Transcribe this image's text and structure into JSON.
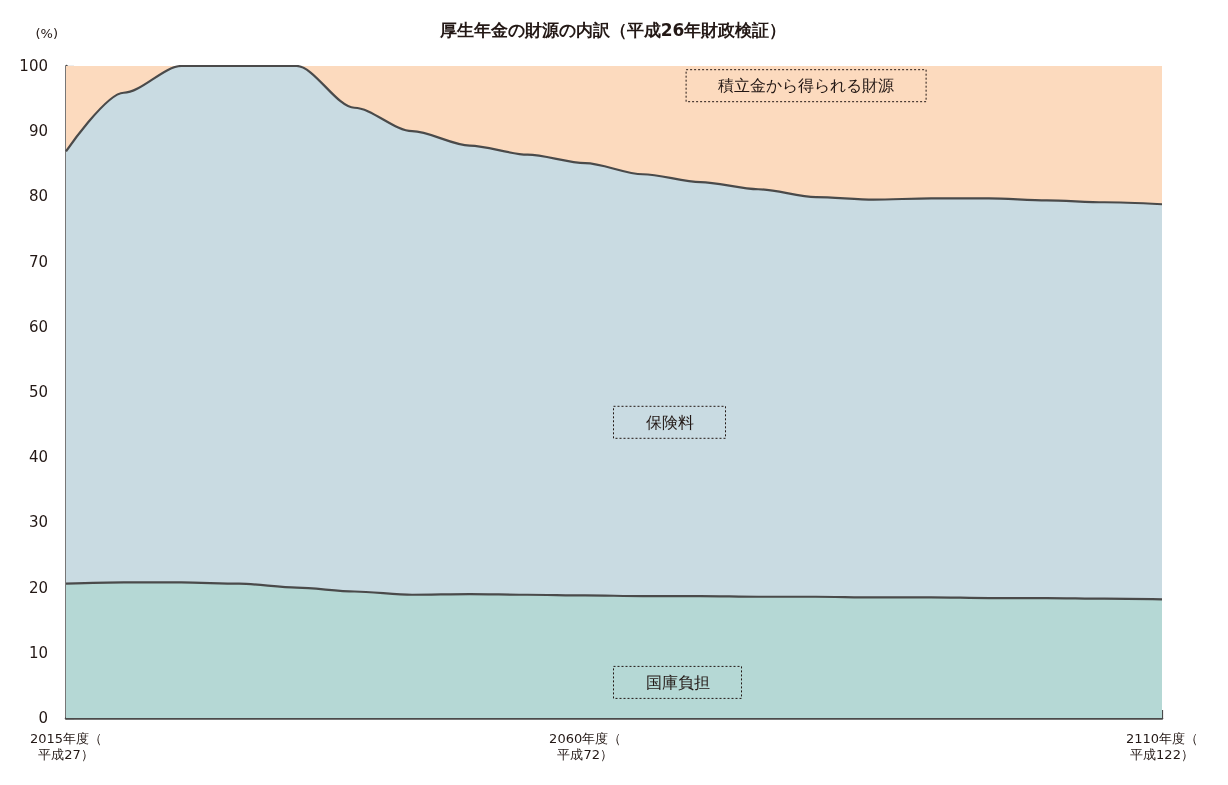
{
  "chart_data": {
    "type": "area",
    "title": "厚生年金の財源の内訳（平成26年財政検証）",
    "ylabel": "(%)",
    "stacked": true,
    "categories": [
      "2015年度（平成27）",
      null,
      null,
      null,
      null,
      null,
      null,
      null,
      null,
      "2060年度（平成72）",
      null,
      null,
      null,
      null,
      null,
      null,
      null,
      null,
      null,
      "2110年度（平成122）"
    ],
    "series": [
      {
        "name": "国庫負担",
        "color": "#b5d8d5",
        "values": [
          20.6,
          20.8,
          20.8,
          20.6,
          20.0,
          19.4,
          18.9,
          19.0,
          18.9,
          18.8,
          18.7,
          18.7,
          18.6,
          18.6,
          18.5,
          18.5,
          18.4,
          18.4,
          18.3,
          18.2
        ]
      },
      {
        "name": "保険料",
        "color": "#c9dbe2",
        "values": [
          66.3,
          75.1,
          79.2,
          79.4,
          80.0,
          74.2,
          71.1,
          68.8,
          67.5,
          66.3,
          64.7,
          63.5,
          62.5,
          61.3,
          61.0,
          61.2,
          61.3,
          61.0,
          60.8,
          60.6
        ]
      },
      {
        "name": "積立金から得られる財源",
        "color": "#fcdabe",
        "values": [
          13.1,
          4.1,
          0,
          0,
          0,
          6.4,
          10.0,
          12.2,
          13.6,
          14.9,
          16.6,
          17.8,
          18.9,
          20.1,
          20.5,
          20.3,
          20.3,
          20.6,
          20.9,
          21.2
        ]
      }
    ],
    "ylim": [
      0,
      100
    ],
    "yticks": [
      0,
      10,
      20,
      30,
      40,
      50,
      60,
      70,
      80,
      90,
      100
    ],
    "grid": false,
    "legend": false
  }
}
